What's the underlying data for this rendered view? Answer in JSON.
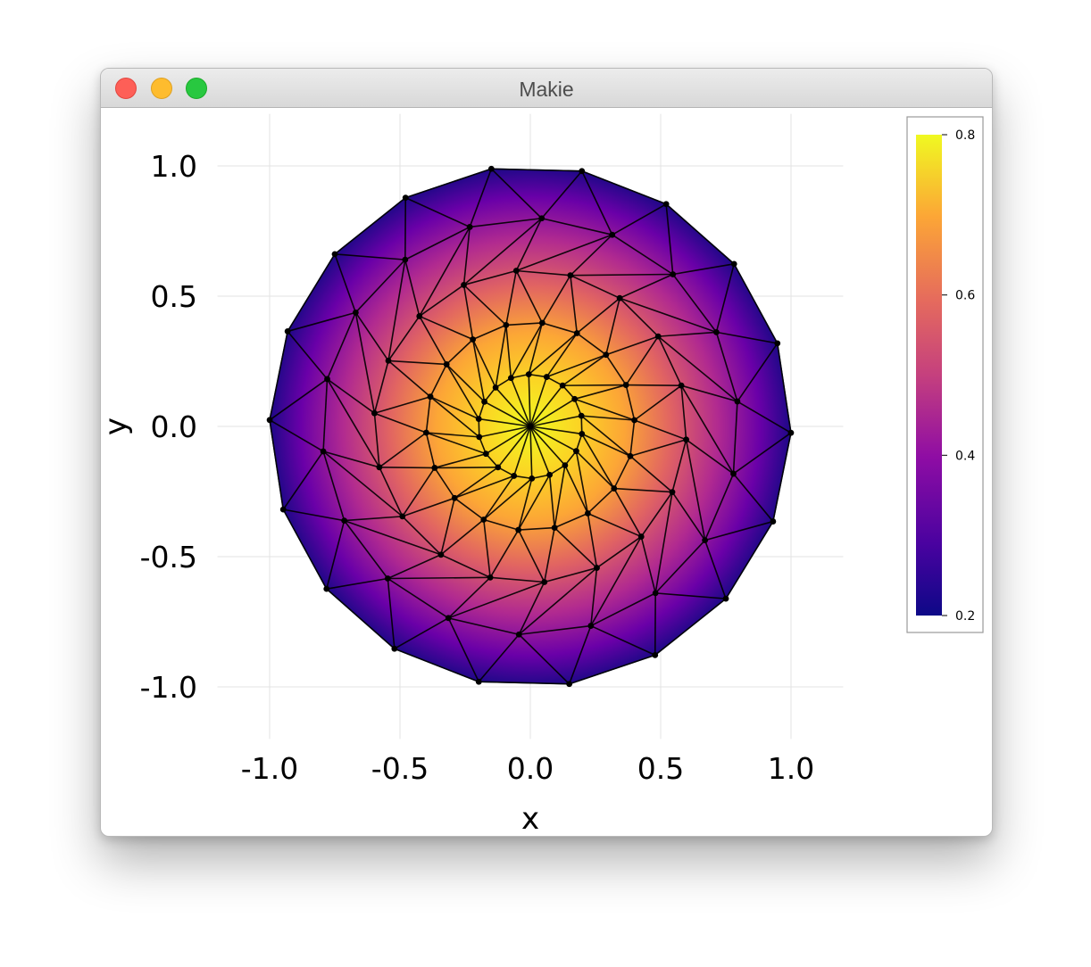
{
  "window": {
    "title": "Makie",
    "buttons": {
      "close": "close",
      "minimize": "minimize",
      "zoom": "zoom"
    }
  },
  "chart_data": {
    "type": "heatmap",
    "title": "",
    "xlabel": "x",
    "ylabel": "y",
    "xlim": [
      -1.2,
      1.2
    ],
    "ylim": [
      -1.2,
      1.2
    ],
    "x_ticks": [
      "-1.0",
      "-0.5",
      "0.0",
      "0.5",
      "1.0"
    ],
    "y_ticks": [
      "1.0",
      "0.5",
      "0.0",
      "-0.5",
      "-1.0"
    ],
    "grid": true,
    "colormap": "plasma",
    "colorbar": {
      "range": [
        0.2,
        0.8
      ],
      "ticks": [
        "0.8",
        "0.6",
        "0.4",
        "0.2"
      ],
      "placement": "right"
    },
    "mesh": {
      "shape": "disk",
      "radius": 1.0,
      "rings": [
        {
          "r": 0.0,
          "count": 1
        },
        {
          "r": 0.2,
          "count": 18
        },
        {
          "r": 0.4,
          "count": 18
        },
        {
          "r": 0.6,
          "count": 18
        },
        {
          "r": 0.8,
          "count": 18
        },
        {
          "r": 1.0,
          "count": 18
        }
      ]
    },
    "field": {
      "description_of_values": "highest at center (~0.8), decreasing toward edge (~0.2)"
    }
  }
}
